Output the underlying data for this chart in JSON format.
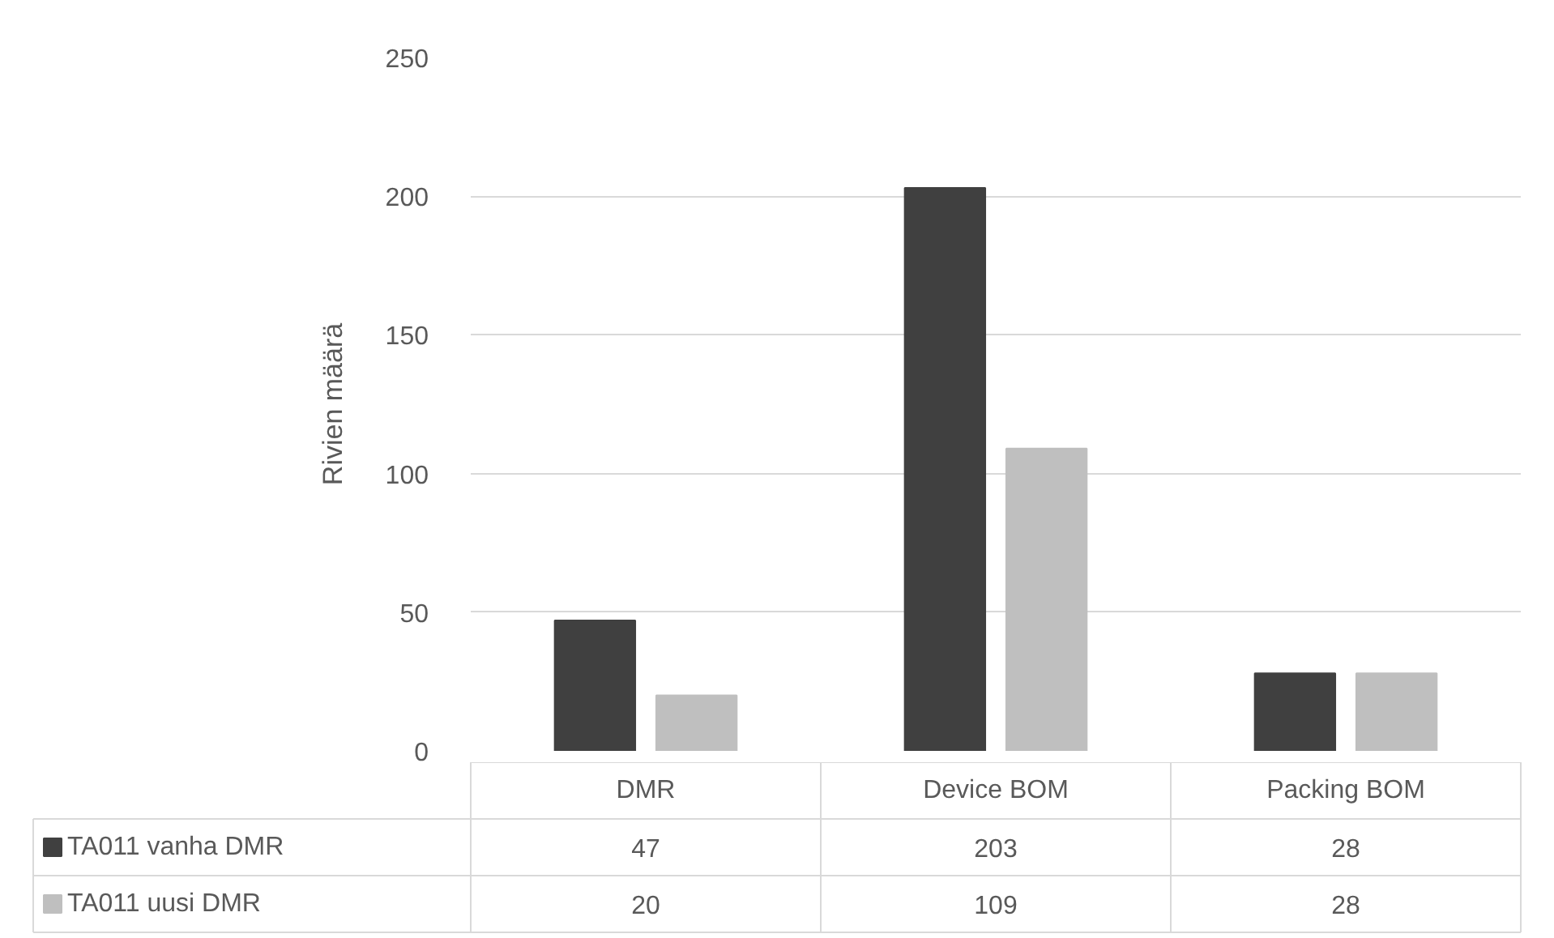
{
  "chart_data": {
    "type": "bar",
    "ylabel": "Rivien määrä",
    "categories": [
      "DMR",
      "Device BOM",
      "Packing BOM"
    ],
    "series": [
      {
        "name": "TA011 vanha DMR",
        "color": "#404040",
        "values": [
          47,
          203,
          28
        ]
      },
      {
        "name": "TA011 uusi DMR",
        "color": "#bfbfbf",
        "values": [
          20,
          109,
          28
        ]
      }
    ],
    "ylim": [
      0,
      250
    ],
    "yticks": [
      0,
      50,
      100,
      150,
      200,
      250
    ],
    "grid": "y",
    "legend": "bottom",
    "data_labels": true
  }
}
